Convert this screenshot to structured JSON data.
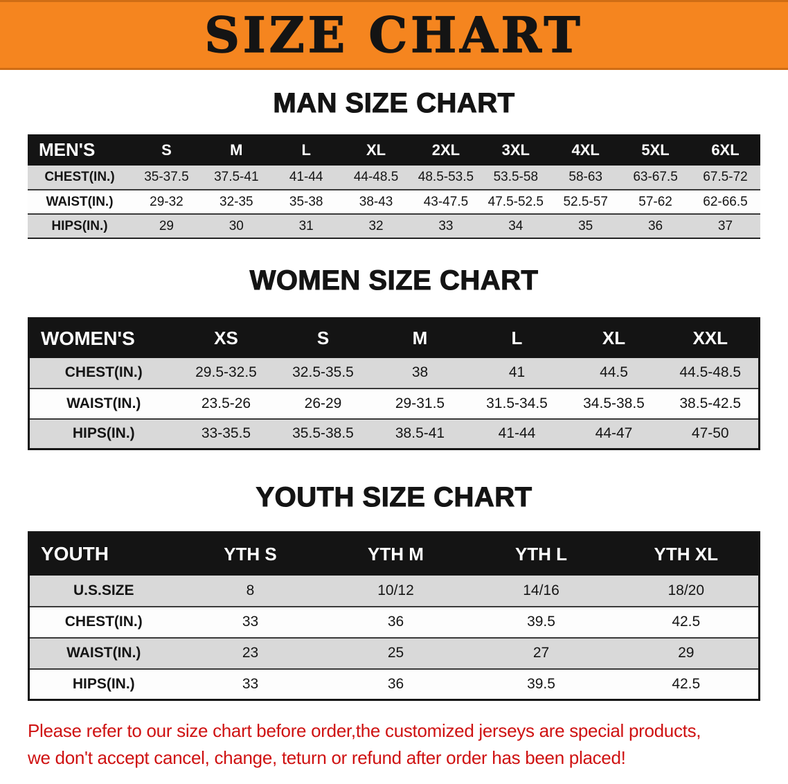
{
  "banner": {
    "title": "SIZE CHART"
  },
  "men": {
    "heading": "MAN SIZE CHART",
    "table": {
      "header": [
        "MEN'S",
        "S",
        "M",
        "L",
        "XL",
        "2XL",
        "3XL",
        "4XL",
        "5XL",
        "6XL"
      ],
      "rows": [
        {
          "label": "CHEST(IN.)",
          "values": [
            "35-37.5",
            "37.5-41",
            "41-44",
            "44-48.5",
            "48.5-53.5",
            "53.5-58",
            "58-63",
            "63-67.5",
            "67.5-72"
          ]
        },
        {
          "label": "WAIST(IN.)",
          "values": [
            "29-32",
            "32-35",
            "35-38",
            "38-43",
            "43-47.5",
            "47.5-52.5",
            "52.5-57",
            "57-62",
            "62-66.5"
          ]
        },
        {
          "label": "HIPS(IN.)",
          "values": [
            "29",
            "30",
            "31",
            "32",
            "33",
            "34",
            "35",
            "36",
            "37"
          ]
        }
      ]
    }
  },
  "women": {
    "heading": "WOMEN SIZE CHART",
    "table": {
      "header": [
        "WOMEN'S",
        "XS",
        "S",
        "M",
        "L",
        "XL",
        "XXL"
      ],
      "rows": [
        {
          "label": "CHEST(IN.)",
          "values": [
            "29.5-32.5",
            "32.5-35.5",
            "38",
            "41",
            "44.5",
            "44.5-48.5"
          ]
        },
        {
          "label": "WAIST(IN.)",
          "values": [
            "23.5-26",
            "26-29",
            "29-31.5",
            "31.5-34.5",
            "34.5-38.5",
            "38.5-42.5"
          ]
        },
        {
          "label": "HIPS(IN.)",
          "values": [
            "33-35.5",
            "35.5-38.5",
            "38.5-41",
            "41-44",
            "44-47",
            "47-50"
          ]
        }
      ]
    }
  },
  "youth": {
    "heading": "YOUTH SIZE CHART",
    "table": {
      "header": [
        "YOUTH",
        "YTH S",
        "YTH M",
        "YTH L",
        "YTH XL"
      ],
      "rows": [
        {
          "label": "U.S.SIZE",
          "values": [
            "8",
            "10/12",
            "14/16",
            "18/20"
          ]
        },
        {
          "label": "CHEST(IN.)",
          "values": [
            "33",
            "36",
            "39.5",
            "42.5"
          ]
        },
        {
          "label": "WAIST(IN.)",
          "values": [
            "23",
            "25",
            "27",
            "29"
          ]
        },
        {
          "label": "HIPS(IN.)",
          "values": [
            "33",
            "36",
            "39.5",
            "42.5"
          ]
        }
      ]
    }
  },
  "footer": {
    "line1": "Please refer to our size chart before order,the customized jerseys are special products,",
    "line2": "we don't accept cancel, change, teturn or refund after order has been placed!"
  },
  "colors": {
    "banner_bg": "#F5851F",
    "table_header_bg": "#141414",
    "row_shade": "#D9D9D9",
    "note_red": "#CF1212"
  }
}
